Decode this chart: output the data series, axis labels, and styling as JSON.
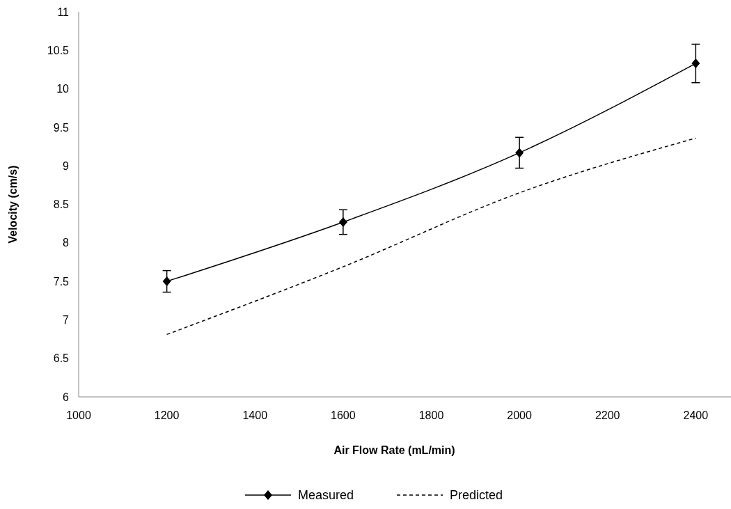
{
  "chart_data": {
    "type": "line",
    "xlabel": "Air Flow Rate (mL/min)",
    "ylabel": "Velocity (cm/s)",
    "x": [
      1200,
      1600,
      2000,
      2400
    ],
    "series": [
      {
        "name": "Measured",
        "color": "#000000",
        "values": [
          7.5,
          8.27,
          9.17,
          10.33
        ],
        "errors": [
          0.14,
          0.16,
          0.2,
          0.25
        ],
        "marker": "diamond",
        "line_style": "solid"
      },
      {
        "name": "Predicted",
        "color": "#000000",
        "values": [
          6.81,
          7.69,
          8.65,
          9.36
        ],
        "marker": "none",
        "line_style": "dashed"
      }
    ],
    "xlim": [
      1000,
      2480
    ],
    "xticks": [
      1000,
      1200,
      1400,
      1600,
      1800,
      2000,
      2200,
      2400
    ],
    "ylim": [
      6,
      11
    ],
    "yticks": [
      6,
      6.5,
      7,
      7.5,
      8,
      8.5,
      9,
      9.5,
      10,
      10.5,
      11
    ],
    "grid": false,
    "legend": "bottom"
  }
}
